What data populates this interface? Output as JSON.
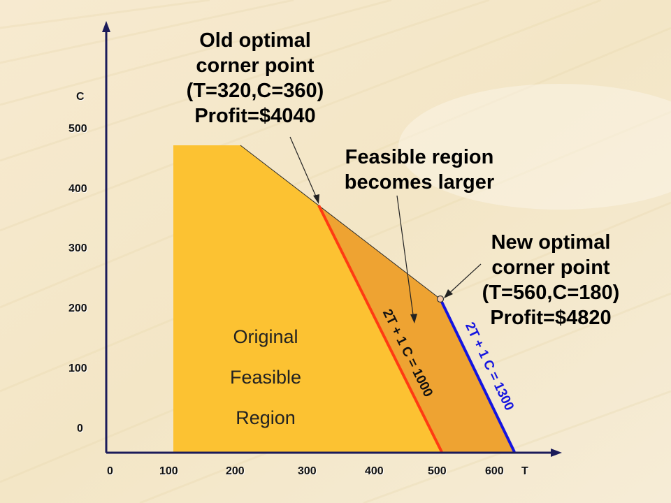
{
  "title_old": [
    "Old optimal",
    "corner point",
    "(T=320,C=360)",
    "Profit=$4040"
  ],
  "title_feasible": [
    "Feasible region",
    "becomes larger"
  ],
  "title_new": [
    "New optimal",
    "corner point",
    "(T=560,C=180)",
    "Profit=$4820"
  ],
  "region_label": [
    "Original",
    "Feasible",
    "Region"
  ],
  "line_old_label": "2T + 1 C = 1000",
  "line_new_label": "2T + 1 C = 1300",
  "axis": {
    "y_name": "C",
    "x_name": "T",
    "y_ticks": [
      "500",
      "400",
      "300",
      "200",
      "100",
      "0"
    ],
    "x_ticks": [
      "0",
      "100",
      "200",
      "300",
      "400",
      "500",
      "600"
    ]
  },
  "colors": {
    "original_region": "#fcc232",
    "added_region": "#eea332",
    "line_old": "#ff3b12",
    "line_new": "#1414e0",
    "axis": "#1b1b5a"
  }
}
